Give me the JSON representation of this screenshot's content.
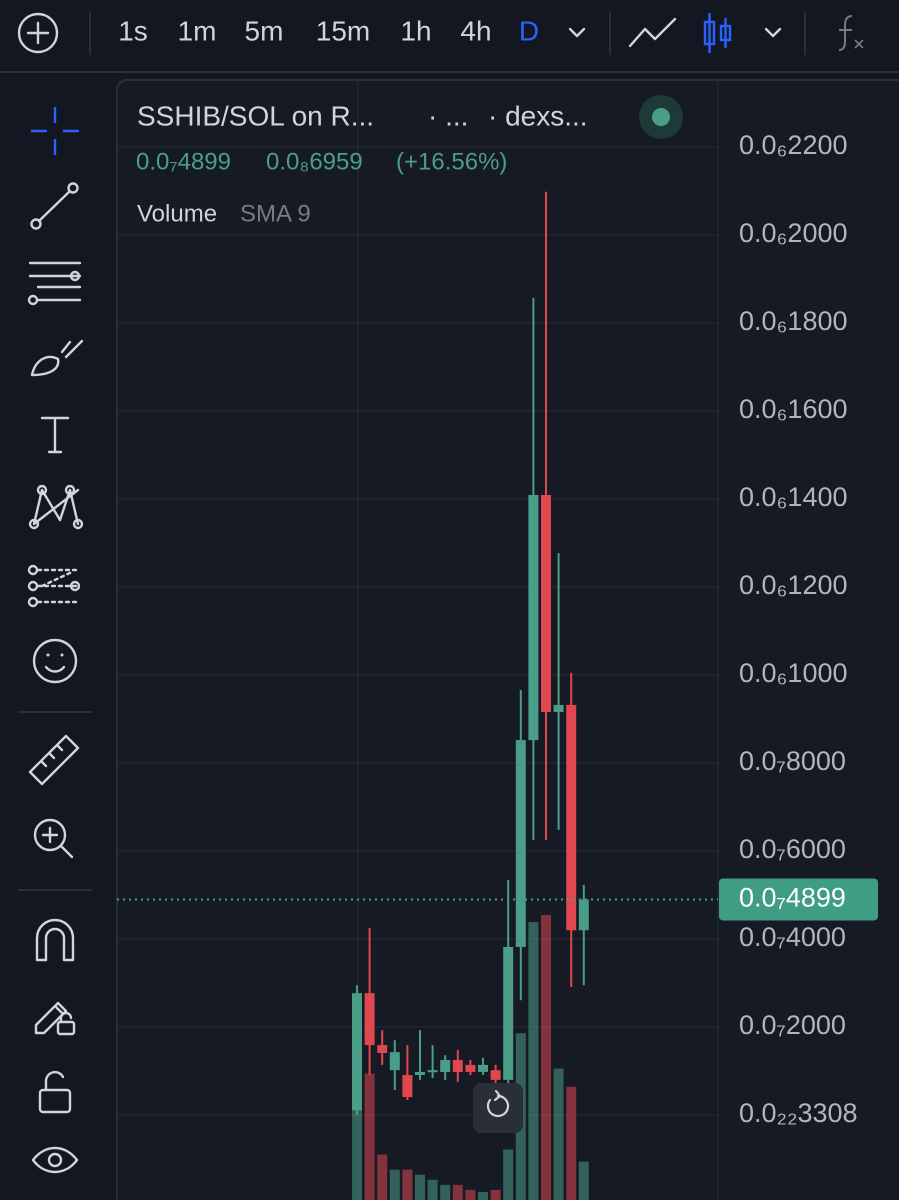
{
  "toolbar": {
    "intervals": [
      "1s",
      "1m",
      "5m",
      "15m",
      "1h",
      "4h",
      "D"
    ]
  },
  "header": {
    "symbol": "SSHIB/SOL on R...",
    "exchange": "· ...",
    "source": "· dexs...",
    "last": "0.0₇4899",
    "change": "0.0₈6959",
    "change_pct": "(+16.56%)",
    "volume_label": "Volume",
    "sma_label": "SMA 9"
  },
  "chart_data": {
    "type": "candlestick",
    "categories": [
      null,
      null,
      null,
      null,
      null,
      null,
      null,
      null,
      null,
      null,
      null,
      null,
      null,
      null,
      null,
      null,
      null,
      null,
      null
    ],
    "open": [
      1.1e-09,
      2.77e-08,
      1.59e-08,
      1.02e-08,
      9.1e-09,
      9.1e-09,
      9.8e-09,
      9.8e-09,
      1.25e-08,
      1.14e-08,
      9.8e-09,
      1.02e-08,
      8e-09,
      3.82e-08,
      8.52e-08,
      1.409e-07,
      9.16e-08,
      9.32e-08,
      4.2e-08
    ],
    "high": [
      2.95e-08,
      4.25e-08,
      1.93e-08,
      1.7e-08,
      1.59e-08,
      1.93e-08,
      1.59e-08,
      1.36e-08,
      1.48e-08,
      1.25e-08,
      1.3e-08,
      1.14e-08,
      5.34e-08,
      9.66e-08,
      1.857e-07,
      2.098e-07,
      1.277e-07,
      1.005e-07,
      5.23e-08
    ],
    "low": [
      0,
      9.1e-09,
      1.14e-08,
      5.7e-09,
      3.4e-09,
      8e-09,
      8.4e-09,
      8e-09,
      7.5e-09,
      9.1e-09,
      9.1e-09,
      6.8e-09,
      6.8e-09,
      2.61e-08,
      6.25e-08,
      6.25e-08,
      6.48e-08,
      2.91e-08,
      2.95e-08
    ],
    "close": [
      2.77e-08,
      1.59e-08,
      1.41e-08,
      1.43e-08,
      4.1e-09,
      9.8e-09,
      1.02e-08,
      1.25e-08,
      9.8e-09,
      9.8e-09,
      1.14e-08,
      8e-09,
      3.82e-08,
      8.52e-08,
      1.409e-07,
      9.16e-08,
      9.32e-08,
      4.2e-08,
      4.899e-08
    ],
    "volume": [
      90,
      125,
      45,
      30,
      30,
      25,
      20,
      15,
      15,
      10,
      8,
      10,
      50,
      165,
      275,
      282,
      130,
      112,
      38
    ],
    "up_color": "#4a9e87",
    "down_color": "#e0474f",
    "ylim": [
      -1.93e-08,
      2.352e-07
    ],
    "yticks": [
      {
        "value": 2.2e-07,
        "label": "0.0₆2200"
      },
      {
        "value": 2e-07,
        "label": "0.0₆2000"
      },
      {
        "value": 1.8e-07,
        "label": "0.0₆1800"
      },
      {
        "value": 1.6e-07,
        "label": "0.0₆1600"
      },
      {
        "value": 1.4e-07,
        "label": "0.0₆1400"
      },
      {
        "value": 1.2e-07,
        "label": "0.0₆1200"
      },
      {
        "value": 1e-07,
        "label": "0.0₆1000"
      },
      {
        "value": 8e-08,
        "label": "0.0₇8000"
      },
      {
        "value": 6e-08,
        "label": "0.0₇6000"
      },
      {
        "value": 4e-08,
        "label": "0.0₇4000"
      },
      {
        "value": 2e-08,
        "label": "0.0₇2000"
      },
      {
        "value": 3.308e-23,
        "label": "0.0₂₂3308"
      }
    ],
    "last_price": {
      "value": 4.899e-08,
      "label": "0.0₇4899"
    },
    "grid": true
  }
}
